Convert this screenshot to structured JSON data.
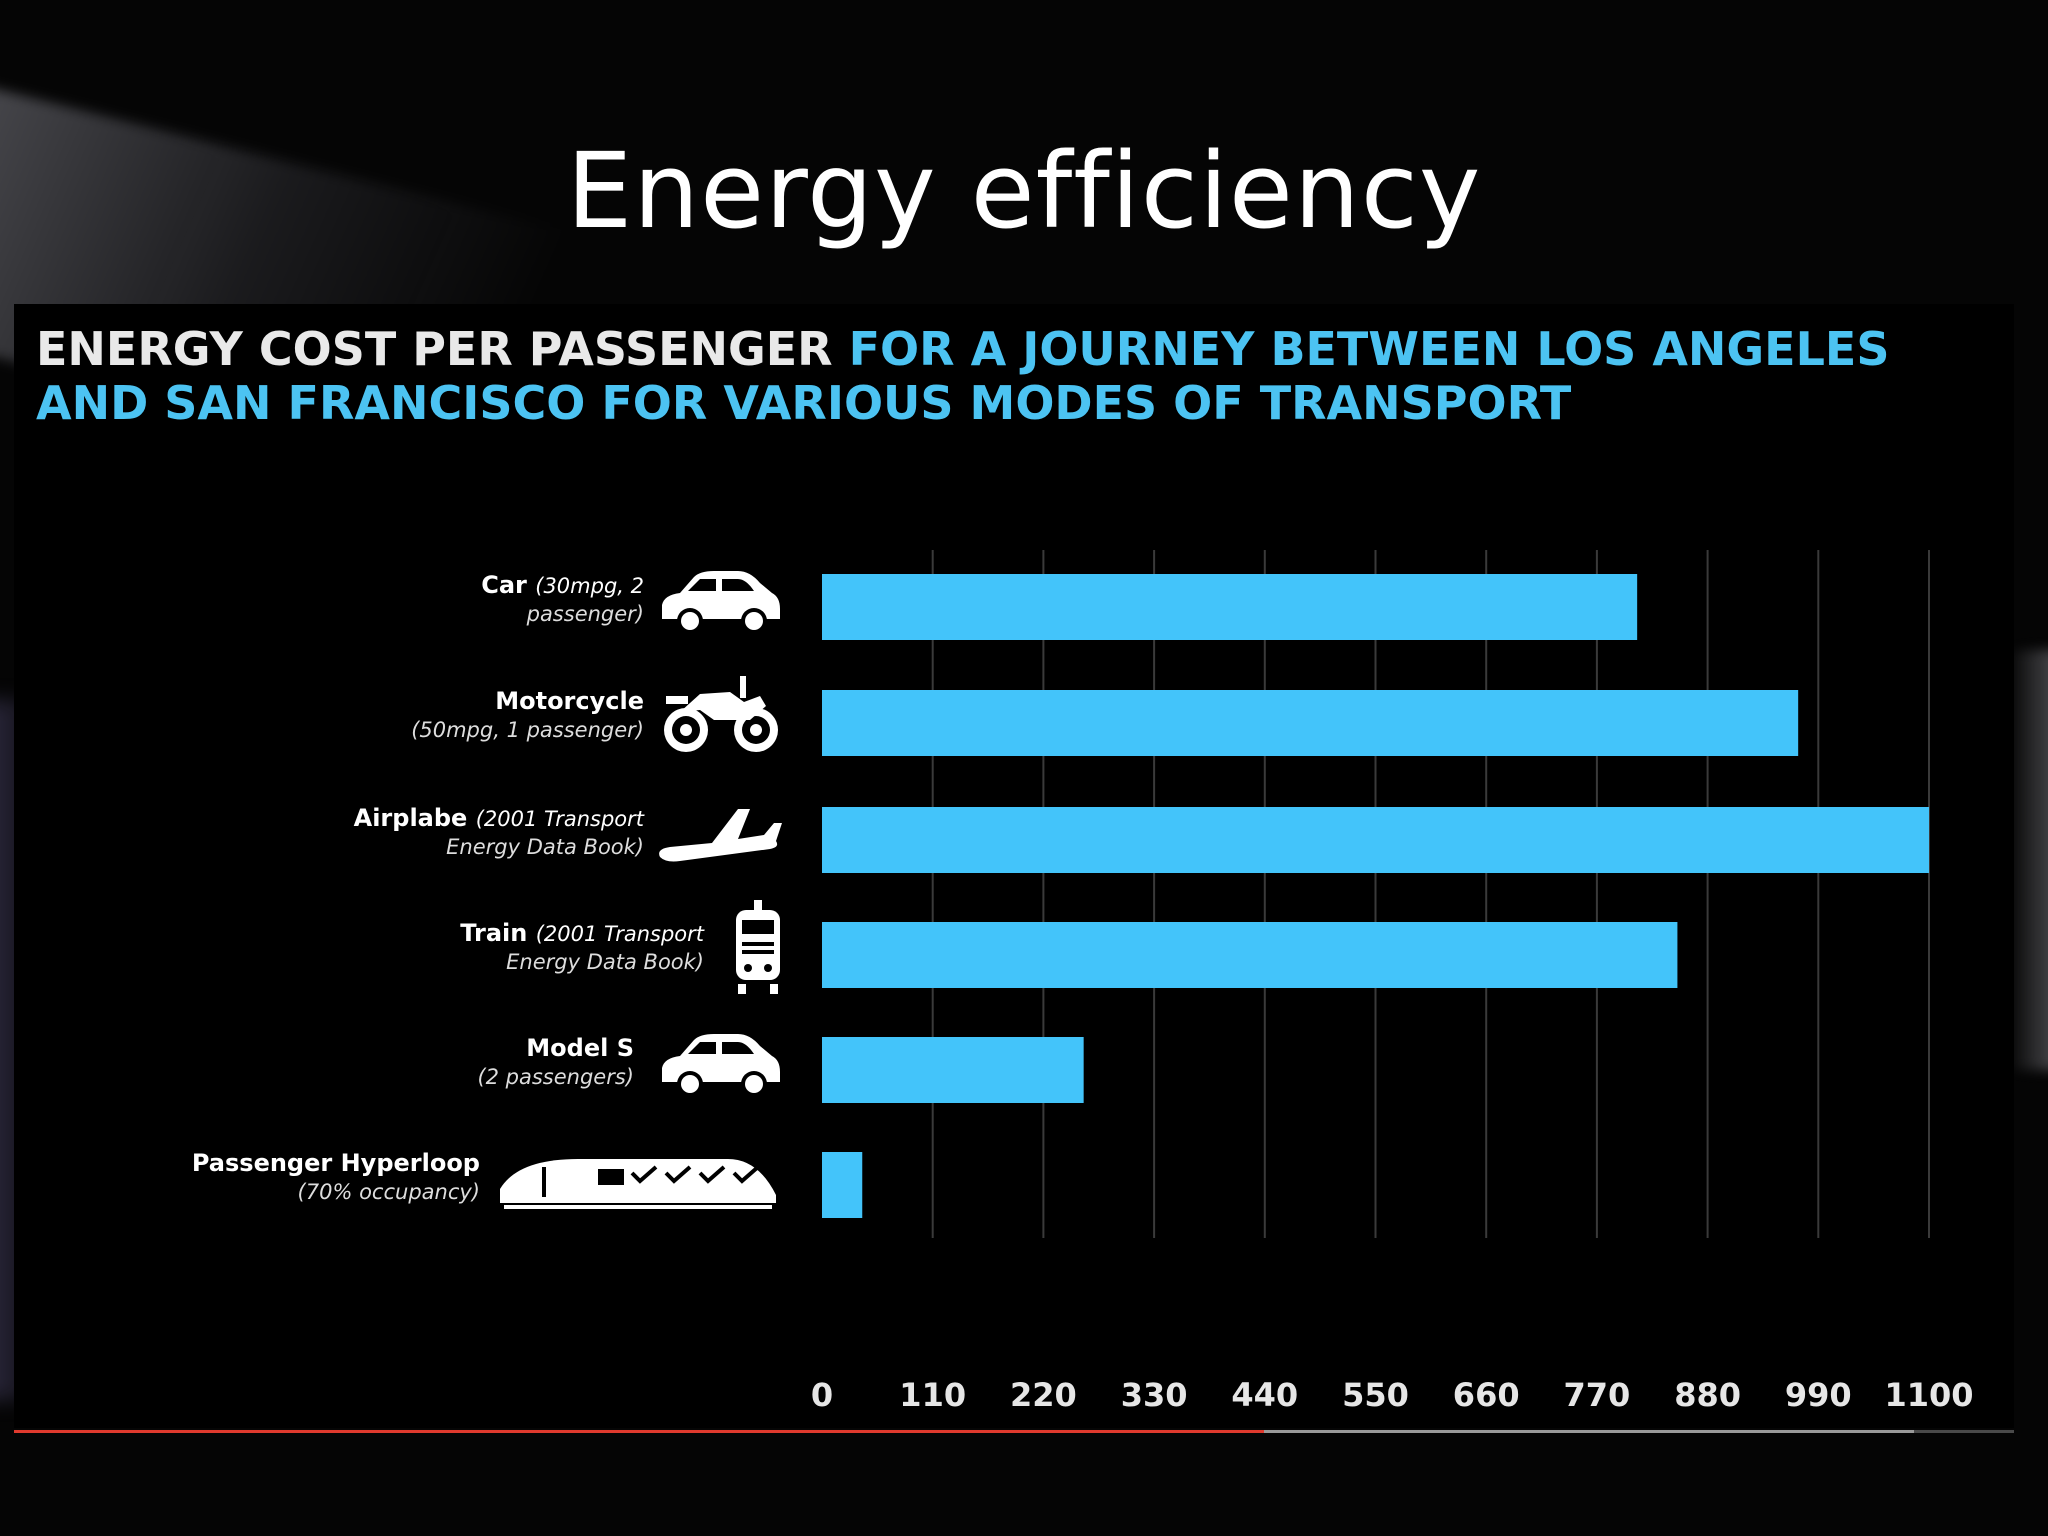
{
  "slide": {
    "title": "Energy efficiency"
  },
  "chart_heading": {
    "white_part": "ENERGY COST PER PASSENGER",
    "blue_part": "FOR A JOURNEY BETWEEN LOS ANGELES AND SAN FRANCISCO FOR VARIOUS MODES OF TRANSPORT"
  },
  "colors": {
    "bar": "#43c4fa",
    "heading_blue": "#4cc3f2",
    "gridline": "#3a3a3a",
    "progress_played": "#e03a2e"
  },
  "chart_data": {
    "type": "bar",
    "orientation": "horizontal",
    "categories": [
      {
        "name": "Car",
        "detail": "(30mpg, 2 passenger)",
        "icon": "car-icon"
      },
      {
        "name": "Motorcycle",
        "detail": "(50mpg, 1 passenger)",
        "icon": "motorcycle-icon"
      },
      {
        "name": "Airplabe",
        "detail": "(2001 Transport Energy Data Book)",
        "icon": "airplane-icon"
      },
      {
        "name": "Train",
        "detail": "(2001 Transport Energy Data Book)",
        "icon": "train-icon"
      },
      {
        "name": "Model S",
        "detail": "(2 passengers)",
        "icon": "car-icon"
      },
      {
        "name": "Passenger Hyperloop",
        "detail": "(70% occupancy)",
        "icon": "hyperloop-icon"
      }
    ],
    "values": [
      810,
      970,
      1100,
      850,
      260,
      40
    ],
    "xlim": [
      0,
      1100
    ],
    "xticks": [
      "0",
      "110",
      "220",
      "330",
      "440",
      "550",
      "660",
      "770",
      "880",
      "990",
      "1100"
    ],
    "grid": "vertical",
    "xlabel": "",
    "ylabel": ""
  },
  "video_progress": {
    "played_fraction": 0.625,
    "buffered_fraction": 0.95
  }
}
